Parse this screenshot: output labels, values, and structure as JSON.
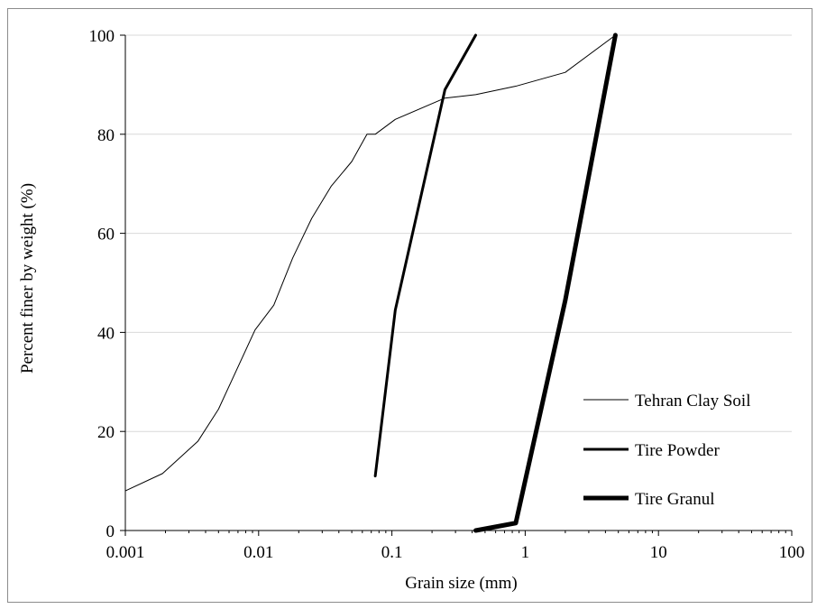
{
  "chart_data": {
    "type": "line",
    "title": "",
    "xlabel": "Grain size (mm)",
    "ylabel": "Percent finer by weight (%)",
    "x_scale": "log",
    "xlim": [
      0.001,
      100
    ],
    "ylim": [
      0,
      100
    ],
    "x_ticks": [
      "0.001",
      "0.01",
      "0.1",
      "1",
      "10",
      "100"
    ],
    "y_ticks": [
      "0",
      "20",
      "40",
      "60",
      "80",
      "100"
    ],
    "grid": "horizontal",
    "legend_position": "bottom-right",
    "series": [
      {
        "name": "Tehran Clay Soil",
        "line_width": "thin",
        "x": [
          0.001,
          0.0019,
          0.0035,
          0.005,
          0.0094,
          0.013,
          0.018,
          0.025,
          0.035,
          0.05,
          0.065,
          0.075,
          0.106,
          0.25,
          0.425,
          0.85,
          2.0,
          4.75
        ],
        "y": [
          8,
          11.5,
          18,
          24.5,
          40.5,
          45.5,
          55,
          63,
          69.5,
          74.5,
          80,
          80,
          83,
          87.3,
          88,
          89.7,
          92.5,
          100
        ]
      },
      {
        "name": "Tire Powder",
        "line_width": "medium",
        "x": [
          0.075,
          0.106,
          0.25,
          0.425
        ],
        "y": [
          11,
          44.5,
          89,
          100
        ]
      },
      {
        "name": "Tire Granul",
        "line_width": "thick",
        "x": [
          0.425,
          0.85,
          2.0,
          4.75
        ],
        "y": [
          0,
          1.5,
          46.5,
          100
        ]
      }
    ]
  }
}
